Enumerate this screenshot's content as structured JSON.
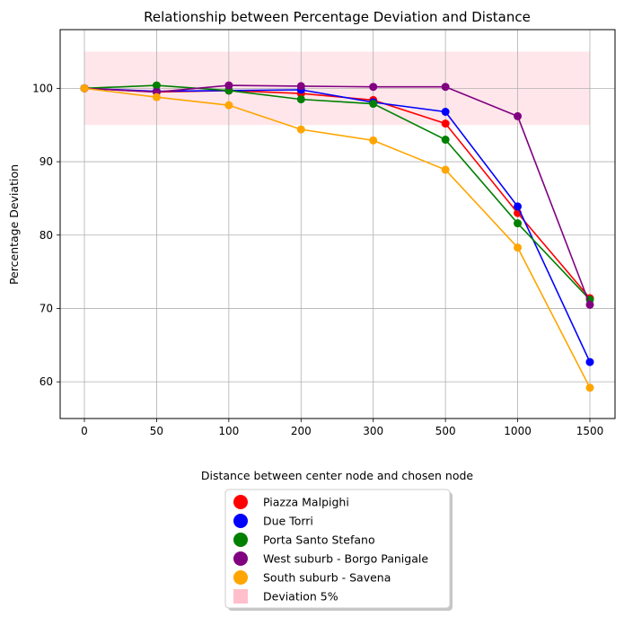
{
  "chart_data": {
    "type": "line",
    "title": "Relationship between Percentage Deviation and Distance",
    "xlabel": "Distance between center node and chosen node",
    "ylabel": "Percentage Deviation",
    "categories": [
      "0",
      "50",
      "100",
      "200",
      "300",
      "500",
      "1000",
      "1500"
    ],
    "ylim": [
      55,
      108
    ],
    "yticks": [
      60,
      70,
      80,
      90,
      100
    ],
    "grid": true,
    "band": {
      "label": "Deviation 5%",
      "y0": 95,
      "y1": 105,
      "color": "#ffc0cb"
    },
    "series": [
      {
        "name": "Piazza Malpighi",
        "color": "#ff0000",
        "values": [
          100,
          99.5,
          99.7,
          99.3,
          98.4,
          95.2,
          83.0,
          71.4
        ]
      },
      {
        "name": "Due Torri",
        "color": "#0000ff",
        "values": [
          100,
          99.6,
          99.7,
          99.8,
          98.1,
          96.8,
          83.9,
          62.7
        ]
      },
      {
        "name": "Porta Santo Stefano",
        "color": "#008000",
        "values": [
          100,
          100.4,
          99.7,
          98.5,
          97.9,
          93.0,
          81.6,
          71.2
        ]
      },
      {
        "name": "West suburb - Borgo Panigale",
        "color": "#800080",
        "values": [
          100,
          99.5,
          100.4,
          100.3,
          100.2,
          100.2,
          96.2,
          70.5
        ]
      },
      {
        "name": "South suburb - Savena",
        "color": "#ffa500",
        "values": [
          100,
          98.8,
          97.7,
          94.4,
          92.9,
          88.9,
          78.3,
          59.2
        ]
      }
    ],
    "legend_position": "below"
  }
}
